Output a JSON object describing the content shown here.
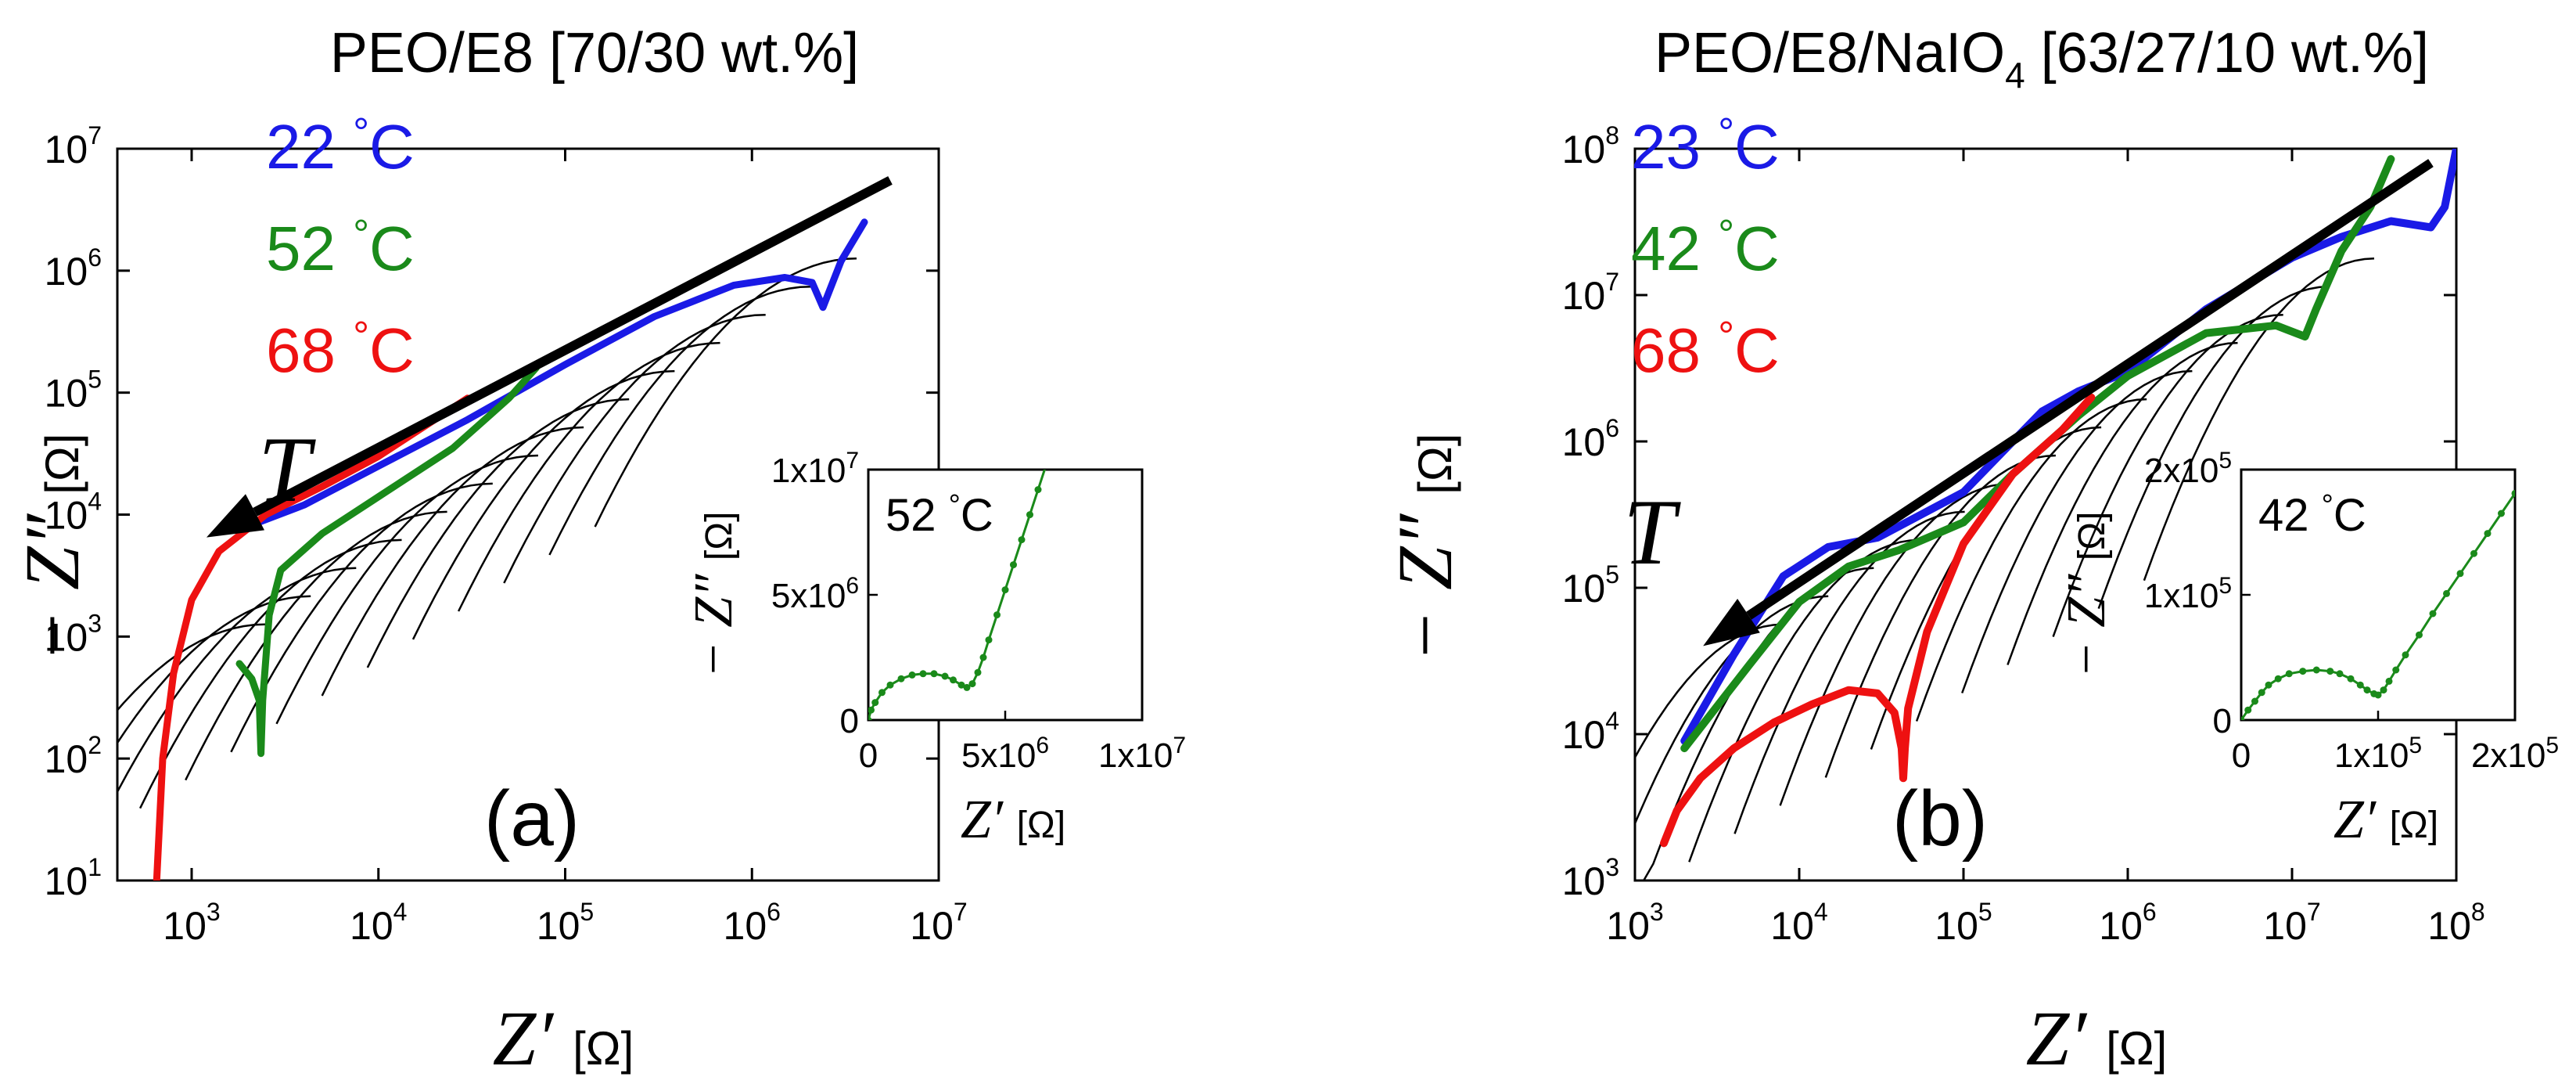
{
  "chart_data": [
    {
      "type": "line",
      "panel_label": "(a)",
      "title": "PEO/E8 [70/30 wt.%]",
      "xlabel": "Z′",
      "xlabel_unit": "[Ω]",
      "ylabel": "− Z″",
      "ylabel_unit": "[Ω]",
      "x_scale": "log",
      "y_scale": "log",
      "xlim": [
        400,
        10000000
      ],
      "ylim": [
        10,
        10000000
      ],
      "x_ticks": [
        {
          "b": "10",
          "e": "3",
          "v": 1000
        },
        {
          "b": "10",
          "e": "4",
          "v": 10000
        },
        {
          "b": "10",
          "e": "5",
          "v": 100000
        },
        {
          "b": "10",
          "e": "6",
          "v": 1000000
        },
        {
          "b": "10",
          "e": "7",
          "v": 10000000
        }
      ],
      "y_ticks": [
        {
          "b": "10",
          "e": "1",
          "v": 10
        },
        {
          "b": "10",
          "e": "2",
          "v": 100
        },
        {
          "b": "10",
          "e": "3",
          "v": 1000
        },
        {
          "b": "10",
          "e": "4",
          "v": 10000
        },
        {
          "b": "10",
          "e": "5",
          "v": 100000
        },
        {
          "b": "10",
          "e": "6",
          "v": 1000000
        },
        {
          "b": "10",
          "e": "7",
          "v": 10000000
        }
      ],
      "arrow_label": "T",
      "arrow": {
        "from": [
          5500000,
          5500000
        ],
        "to": [
          1200,
          6500
        ]
      },
      "legend_placement": "top-left",
      "legend": [
        {
          "text": "22 °C",
          "color": "#1a1ae6"
        },
        {
          "text": "52 °C",
          "color": "#1a8a1a"
        },
        {
          "text": "68 °C",
          "color": "#ee1111"
        }
      ],
      "series": [
        {
          "name": "22 °C",
          "color": "#1a1ae6",
          "x": [
            2000,
            4000,
            10000,
            30000,
            100000,
            300000,
            800000,
            1500000,
            2100000,
            2400000,
            3000000,
            4000000
          ],
          "y": [
            8000,
            12000,
            25000,
            60000,
            170000,
            420000,
            760000,
            880000,
            800000,
            500000,
            1200000,
            2500000
          ]
        },
        {
          "name": "52 °C",
          "color": "#1a8a1a",
          "x": [
            1800,
            2100,
            2300,
            2350,
            2400,
            2600,
            3000,
            5000,
            10000,
            25000,
            50000,
            70000
          ],
          "y": [
            600,
            450,
            300,
            110,
            300,
            1500,
            3500,
            7000,
            14000,
            35000,
            90000,
            160000
          ]
        },
        {
          "name": "68 °C",
          "color": "#ee1111",
          "x": [
            650,
            700,
            800,
            1000,
            1400,
            2500,
            5000,
            10000,
            20000,
            30000
          ],
          "y": [
            10,
            100,
            500,
            2000,
            5000,
            10000,
            17000,
            30000,
            60000,
            90000
          ]
        }
      ],
      "inset": {
        "temperature_label": "52 °C",
        "xlabel": "Z′",
        "xlabel_unit": "[Ω]",
        "ylabel": "− Z″",
        "ylabel_unit": "[Ω]",
        "xlim": [
          0,
          10000000
        ],
        "ylim": [
          0,
          10000000
        ],
        "x_ticks": [
          {
            "m": "0",
            "e": "",
            "v": 0
          },
          {
            "m": "5x10",
            "e": "6",
            "v": 5000000
          },
          {
            "m": "1x10",
            "e": "7",
            "v": 10000000
          }
        ],
        "y_ticks": [
          {
            "m": "0",
            "e": "",
            "v": 0
          },
          {
            "m": "5x10",
            "e": "6",
            "v": 5000000
          },
          {
            "m": "1x10",
            "e": "7",
            "v": 10000000
          }
        ],
        "series": {
          "color": "#1a8a1a",
          "x": [
            0,
            100000,
            250000,
            500000,
            800000,
            1200000,
            1600000,
            2000000,
            2400000,
            2800000,
            3100000,
            3400000,
            3600000,
            3800000,
            4000000,
            4200000,
            4400000,
            4700000,
            5000000,
            5300000,
            5600000,
            5900000,
            6200000,
            6500000
          ],
          "y": [
            0,
            400000,
            700000,
            1100000,
            1400000,
            1650000,
            1800000,
            1850000,
            1850000,
            1750000,
            1600000,
            1400000,
            1300000,
            1450000,
            1900000,
            2500000,
            3200000,
            4200000,
            5200000,
            6200000,
            7200000,
            8200000,
            9200000,
            10200000
          ]
        }
      }
    },
    {
      "type": "line",
      "panel_label": "(b)",
      "title": "PEO/E8/NaIO",
      "title_sub": "4",
      "title_suffix": " [63/27/10 wt.%]",
      "xlabel": "Z′",
      "xlabel_unit": "[Ω]",
      "ylabel": "− Z″",
      "ylabel_unit": "[Ω]",
      "x_scale": "log",
      "y_scale": "log",
      "xlim": [
        1000,
        100000000
      ],
      "ylim": [
        1000,
        100000000
      ],
      "x_ticks": [
        {
          "b": "10",
          "e": "3",
          "v": 1000
        },
        {
          "b": "10",
          "e": "4",
          "v": 10000
        },
        {
          "b": "10",
          "e": "5",
          "v": 100000
        },
        {
          "b": "10",
          "e": "6",
          "v": 1000000
        },
        {
          "b": "10",
          "e": "7",
          "v": 10000000
        },
        {
          "b": "10",
          "e": "8",
          "v": 100000000
        }
      ],
      "y_ticks": [
        {
          "b": "10",
          "e": "3",
          "v": 1000
        },
        {
          "b": "10",
          "e": "4",
          "v": 10000
        },
        {
          "b": "10",
          "e": "5",
          "v": 100000
        },
        {
          "b": "10",
          "e": "6",
          "v": 1000000
        },
        {
          "b": "10",
          "e": "7",
          "v": 10000000
        },
        {
          "b": "10",
          "e": "8",
          "v": 100000000
        }
      ],
      "arrow_label": "T",
      "arrow": {
        "from": [
          70000000,
          80000000
        ],
        "to": [
          2600,
          40000
        ]
      },
      "legend_placement": "top-left",
      "legend": [
        {
          "text": "23 °C",
          "color": "#1a1ae6"
        },
        {
          "text": "42 °C",
          "color": "#1a8a1a"
        },
        {
          "text": "68 °C",
          "color": "#ee1111"
        }
      ],
      "series": [
        {
          "name": "23 °C",
          "color": "#1a1ae6",
          "x": [
            2000,
            4000,
            8000,
            15000,
            30000,
            100000,
            300000,
            500000,
            1000000,
            3000000,
            10000000,
            20000000,
            40000000,
            70000000,
            85000000,
            100000000
          ],
          "y": [
            9000,
            35000,
            120000,
            190000,
            220000,
            450000,
            1600000,
            2200000,
            3000000,
            8000000,
            18000000,
            25000000,
            32000000,
            29000000,
            40000000,
            100000000
          ],
          "stroke_width": 10
        },
        {
          "name": "42 °C",
          "color": "#1a8a1a",
          "x": [
            2000,
            5000,
            10000,
            20000,
            40000,
            100000,
            200000,
            500000,
            1000000,
            3000000,
            8000000,
            12000000,
            14000000,
            20000000,
            30000000,
            40000000
          ],
          "y": [
            8000,
            30000,
            80000,
            140000,
            180000,
            280000,
            600000,
            1500000,
            2800000,
            5500000,
            6200000,
            5200000,
            8000000,
            20000000,
            40000000,
            85000000
          ],
          "stroke_width": 10
        },
        {
          "name": "68 °C",
          "color": "#ee1111",
          "x": [
            1500,
            1800,
            2500,
            4000,
            7000,
            12000,
            20000,
            30000,
            38000,
            42000,
            43000,
            44000,
            46000,
            60000,
            100000,
            200000,
            400000,
            600000
          ],
          "y": [
            1800,
            3000,
            5000,
            8000,
            12000,
            16000,
            20000,
            19000,
            14000,
            8000,
            5000,
            8000,
            15000,
            50000,
            200000,
            600000,
            1200000,
            2000000
          ],
          "stroke_width": 10
        }
      ],
      "inset": {
        "temperature_label": "42 °C",
        "xlabel": "Z′",
        "xlabel_unit": "[Ω]",
        "ylabel": "− Z″",
        "ylabel_unit": "[Ω]",
        "xlim": [
          0,
          200000
        ],
        "ylim": [
          0,
          200000
        ],
        "x_ticks": [
          {
            "m": "0",
            "e": "",
            "v": 0
          },
          {
            "m": "1x10",
            "e": "5",
            "v": 100000
          },
          {
            "m": "2x10",
            "e": "5",
            "v": 200000
          }
        ],
        "y_ticks": [
          {
            "m": "0",
            "e": "",
            "v": 0
          },
          {
            "m": "1x10",
            "e": "5",
            "v": 100000
          },
          {
            "m": "2x10",
            "e": "5",
            "v": 200000
          }
        ],
        "series": {
          "color": "#1a8a1a",
          "x": [
            0,
            5000,
            10000,
            15000,
            20000,
            27000,
            35000,
            45000,
            55000,
            65000,
            72000,
            80000,
            87000,
            92000,
            97000,
            100000,
            104000,
            108000,
            113000,
            120000,
            130000,
            140000,
            150000,
            160000,
            170000,
            180000,
            190000,
            200000
          ],
          "y": [
            0,
            8000,
            15000,
            22000,
            28000,
            33000,
            37000,
            39000,
            40000,
            39000,
            37000,
            33000,
            28000,
            24000,
            21000,
            20000,
            24000,
            31000,
            40000,
            52000,
            68000,
            85000,
            101000,
            117000,
            133000,
            149000,
            165000,
            181000
          ]
        }
      }
    }
  ]
}
